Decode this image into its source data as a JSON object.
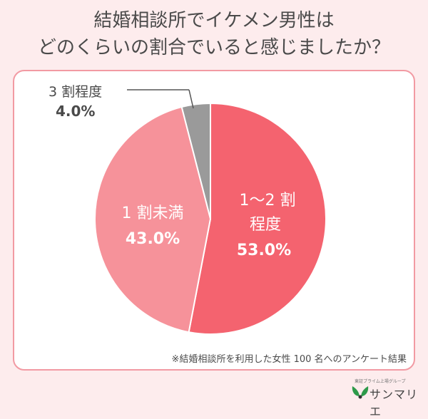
{
  "title": {
    "line1": "結婚相談所でイケメン男性は",
    "line2": "どのくらいの割合でいると感じましたか？"
  },
  "chart_data": {
    "type": "pie",
    "title": "結婚相談所でイケメン男性はどのくらいの割合でいると感じましたか？",
    "slices": [
      {
        "label": "1〜2 割程度",
        "label_line1": "1〜2 割",
        "label_line2": "程度",
        "value": 53.0,
        "display": "53.0%",
        "color": "#f4636f"
      },
      {
        "label": "1 割未満",
        "value": 43.0,
        "display": "43.0%",
        "color": "#f6929a"
      },
      {
        "label": "3 割程度",
        "value": 4.0,
        "display": "4.0%",
        "color": "#9a9a9a"
      }
    ],
    "start": "top",
    "direction": "clockwise"
  },
  "note": "※結婚相談所を利用した女性 100 名へのアンケート結果",
  "logo": {
    "sub": "東証プライム上場グループ",
    "name": "サンマリエ"
  }
}
